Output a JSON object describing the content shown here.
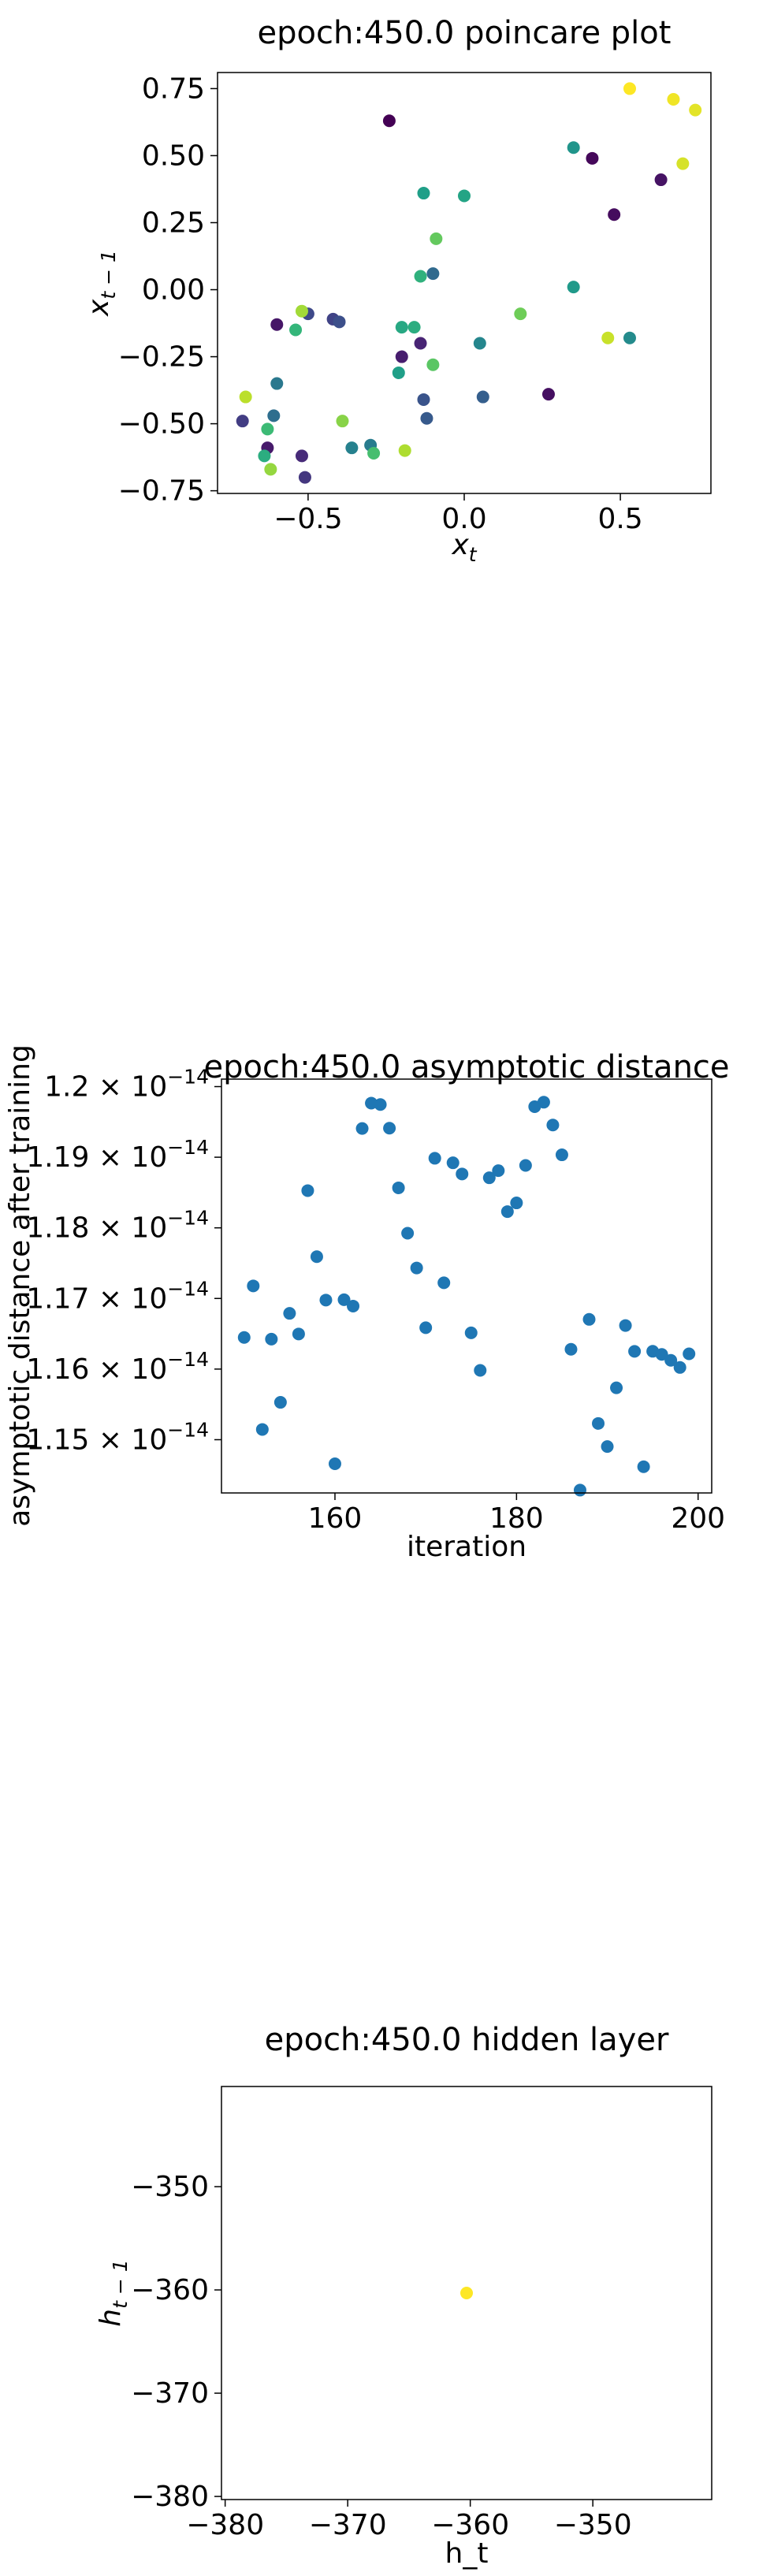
{
  "chart_data": [
    {
      "type": "scatter",
      "title": "epoch:450.0 poincare plot",
      "xlabel": "x_t",
      "ylabel": "x_{t-1}",
      "xlim": [
        -0.79,
        0.79
      ],
      "ylim": [
        -0.76,
        0.81
      ],
      "xticks": [
        -0.5,
        0.0,
        0.5
      ],
      "xtick_labels": [
        "−0.5",
        "0.0",
        "0.5"
      ],
      "yticks": [
        -0.75,
        -0.5,
        -0.25,
        0.0,
        0.25,
        0.5,
        0.75
      ],
      "ytick_labels": [
        "−0.75",
        "−0.50",
        "−0.25",
        "0.00",
        "0.25",
        "0.50",
        "0.75"
      ],
      "colormap": "viridis",
      "points": [
        {
          "x": -0.24,
          "y": 0.63,
          "c": 0.0
        },
        {
          "x": 0.41,
          "y": 0.49,
          "c": 0.02
        },
        {
          "x": 0.48,
          "y": 0.28,
          "c": 0.03
        },
        {
          "x": 0.63,
          "y": 0.41,
          "c": 0.05
        },
        {
          "x": 0.27,
          "y": -0.39,
          "c": 0.04
        },
        {
          "x": -0.6,
          "y": -0.13,
          "c": 0.06
        },
        {
          "x": -0.2,
          "y": -0.25,
          "c": 0.08
        },
        {
          "x": -0.14,
          "y": -0.2,
          "c": 0.1
        },
        {
          "x": -0.63,
          "y": -0.59,
          "c": 0.07
        },
        {
          "x": -0.52,
          "y": -0.62,
          "c": 0.12
        },
        {
          "x": -0.51,
          "y": -0.7,
          "c": 0.16
        },
        {
          "x": -0.71,
          "y": -0.49,
          "c": 0.18
        },
        {
          "x": -0.42,
          "y": -0.11,
          "c": 0.2
        },
        {
          "x": -0.4,
          "y": -0.12,
          "c": 0.24
        },
        {
          "x": -0.5,
          "y": -0.09,
          "c": 0.22
        },
        {
          "x": -0.13,
          "y": -0.41,
          "c": 0.26
        },
        {
          "x": -0.12,
          "y": -0.48,
          "c": 0.28
        },
        {
          "x": 0.06,
          "y": -0.4,
          "c": 0.3
        },
        {
          "x": -0.1,
          "y": 0.06,
          "c": 0.34
        },
        {
          "x": -0.61,
          "y": -0.47,
          "c": 0.36
        },
        {
          "x": -0.6,
          "y": -0.35,
          "c": 0.4
        },
        {
          "x": -0.3,
          "y": -0.58,
          "c": 0.42
        },
        {
          "x": -0.36,
          "y": -0.59,
          "c": 0.44
        },
        {
          "x": 0.05,
          "y": -0.2,
          "c": 0.46
        },
        {
          "x": 0.53,
          "y": -0.18,
          "c": 0.48
        },
        {
          "x": 0.35,
          "y": 0.53,
          "c": 0.52
        },
        {
          "x": 0.35,
          "y": 0.01,
          "c": 0.54
        },
        {
          "x": -0.13,
          "y": 0.36,
          "c": 0.56
        },
        {
          "x": 0.0,
          "y": 0.35,
          "c": 0.58
        },
        {
          "x": -0.21,
          "y": -0.31,
          "c": 0.56
        },
        {
          "x": -0.2,
          "y": -0.14,
          "c": 0.6
        },
        {
          "x": -0.16,
          "y": -0.14,
          "c": 0.62
        },
        {
          "x": -0.14,
          "y": 0.05,
          "c": 0.64
        },
        {
          "x": -0.54,
          "y": -0.15,
          "c": 0.66
        },
        {
          "x": -0.64,
          "y": -0.62,
          "c": 0.62
        },
        {
          "x": -0.63,
          "y": -0.52,
          "c": 0.68
        },
        {
          "x": -0.29,
          "y": -0.61,
          "c": 0.7
        },
        {
          "x": -0.1,
          "y": -0.28,
          "c": 0.74
        },
        {
          "x": -0.09,
          "y": 0.19,
          "c": 0.76
        },
        {
          "x": 0.18,
          "y": -0.09,
          "c": 0.78
        },
        {
          "x": -0.62,
          "y": -0.67,
          "c": 0.84
        },
        {
          "x": -0.39,
          "y": -0.49,
          "c": 0.82
        },
        {
          "x": -0.52,
          "y": -0.08,
          "c": 0.86
        },
        {
          "x": -0.19,
          "y": -0.6,
          "c": 0.88
        },
        {
          "x": -0.7,
          "y": -0.4,
          "c": 0.9
        },
        {
          "x": 0.46,
          "y": -0.18,
          "c": 0.92
        },
        {
          "x": 0.7,
          "y": 0.47,
          "c": 0.94
        },
        {
          "x": 0.74,
          "y": 0.67,
          "c": 0.96
        },
        {
          "x": 0.67,
          "y": 0.71,
          "c": 0.98
        },
        {
          "x": 0.53,
          "y": 0.75,
          "c": 1.0
        }
      ]
    },
    {
      "type": "scatter",
      "title": "epoch:450.0 asymptotic distance",
      "xlabel": "iteration",
      "ylabel": "asymptotic distance after training",
      "xlim": [
        147.5,
        201.5
      ],
      "ylim": [
        1.14246e-14,
        1.20106e-14
      ],
      "xticks": [
        160,
        180,
        200
      ],
      "xtick_labels": [
        "160",
        "180",
        "200"
      ],
      "yticks": [
        1.15e-14,
        1.16e-14,
        1.17e-14,
        1.18e-14,
        1.19e-14,
        1.2e-14
      ],
      "ytick_labels": [
        "1.15 × 10⁻¹⁴",
        "1.16 × 10⁻¹⁴",
        "1.17 × 10⁻¹⁴",
        "1.18 × 10⁻¹⁴",
        "1.19 × 10⁻¹⁴",
        "1.2 × 10⁻¹⁴"
      ],
      "color": "#1f77b4",
      "x": [
        150,
        151,
        152,
        153,
        154,
        155,
        156,
        157,
        158,
        159,
        160,
        161,
        162,
        163,
        164,
        165,
        166,
        167,
        168,
        169,
        170,
        171,
        172,
        173,
        174,
        175,
        176,
        177,
        178,
        179,
        180,
        181,
        182,
        183,
        184,
        185,
        186,
        187,
        188,
        189,
        190,
        191,
        192,
        193,
        194,
        195,
        196,
        197,
        198,
        199
      ],
      "y": [
        1.16448e-14,
        1.17178e-14,
        1.15145e-14,
        1.16424e-14,
        1.15529e-14,
        1.16789e-14,
        1.16497e-14,
        1.18527e-14,
        1.17592e-14,
        1.16977e-14,
        1.14659e-14,
        1.16982e-14,
        1.16892e-14,
        1.19407e-14,
        1.19766e-14,
        1.19746e-14,
        1.19411e-14,
        1.18566e-14,
        1.17924e-14,
        1.17432e-14,
        1.16586e-14,
        1.18985e-14,
        1.17222e-14,
        1.18921e-14,
        1.18763e-14,
        1.16513e-14,
        1.15982e-14,
        1.18709e-14,
        1.1881e-14,
        1.1823e-14,
        1.18353e-14,
        1.18884e-14,
        1.19716e-14,
        1.19779e-14,
        1.19456e-14,
        1.19034e-14,
        1.1628e-14,
        1.14286e-14,
        1.16704e-14,
        1.1523e-14,
        1.14903e-14,
        1.15735e-14,
        1.16617e-14,
        1.16251e-14,
        1.14617e-14,
        1.16252e-14,
        1.16208e-14,
        1.16124e-14,
        1.16023e-14,
        1.16216e-14
      ]
    },
    {
      "type": "scatter",
      "title": "epoch:450.0 hidden layer",
      "xlabel": "h_t",
      "ylabel": "h_{t-1}",
      "xlim": [
        -380.3,
        -340.3
      ],
      "ylim": [
        -380.3,
        -340.3
      ],
      "xticks": [
        -380,
        -370,
        -360,
        -350
      ],
      "xtick_labels": [
        "−380",
        "−370",
        "−360",
        "−350"
      ],
      "yticks": [
        -380,
        -370,
        -360,
        -350
      ],
      "ytick_labels": [
        "−380",
        "−370",
        "−360",
        "−350"
      ],
      "points": [
        {
          "x": -360.3,
          "y": -360.3,
          "color": "#fde725"
        }
      ]
    }
  ]
}
